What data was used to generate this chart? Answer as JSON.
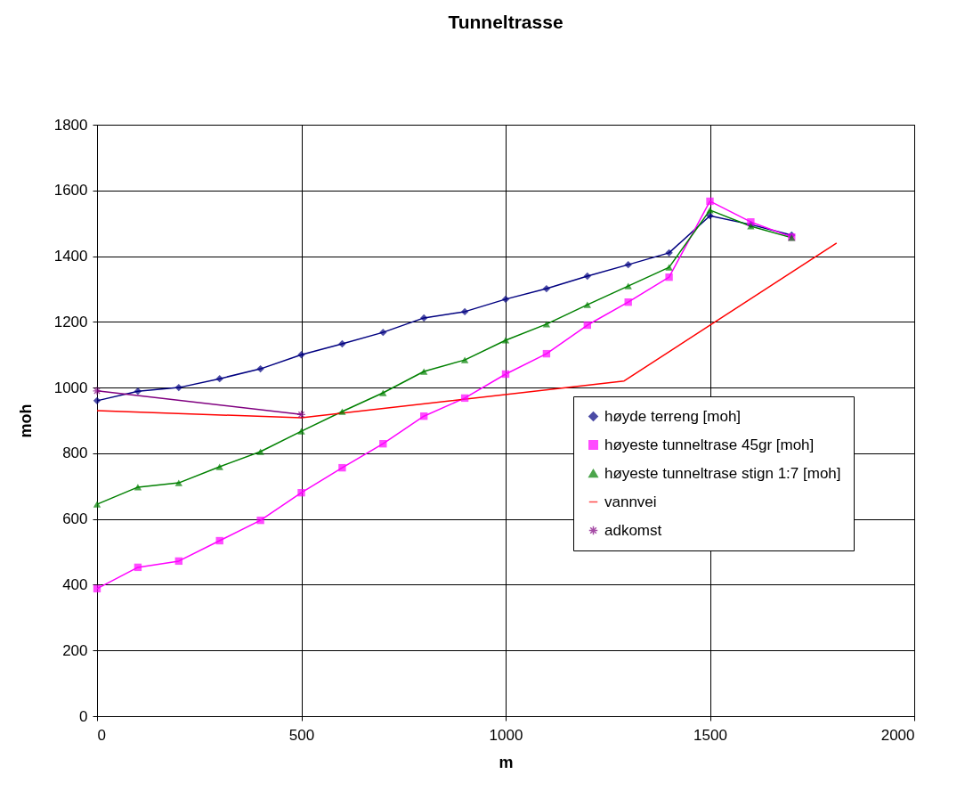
{
  "chart_data": {
    "type": "line",
    "title": "Tunneltrasse",
    "xlabel": "m",
    "ylabel": "moh",
    "xlim": [
      0,
      2000
    ],
    "xticks": [
      0,
      500,
      1000,
      1500,
      2000
    ],
    "ylim": [
      0,
      1800
    ],
    "yticks": [
      0,
      200,
      400,
      600,
      800,
      1000,
      1200,
      1400,
      1600,
      1800
    ],
    "grid": true,
    "legend": "right",
    "series": [
      {
        "name": "høyde terreng [moh]",
        "color": "#000080",
        "marker": "diamond",
        "x": [
          0,
          100,
          200,
          300,
          400,
          500,
          600,
          700,
          800,
          900,
          1000,
          1100,
          1200,
          1300,
          1400,
          1500,
          1600,
          1700
        ],
        "values": [
          960,
          989,
          1000,
          1027,
          1057,
          1100,
          1133,
          1168,
          1212,
          1231,
          1269,
          1301,
          1339,
          1374,
          1410,
          1523,
          1496,
          1464
        ]
      },
      {
        "name": "høyeste tunneltrase 45gr [moh]",
        "color": "#ff00ff",
        "marker": "square",
        "x": [
          0,
          100,
          200,
          300,
          400,
          500,
          600,
          700,
          800,
          900,
          1000,
          1100,
          1200,
          1300,
          1400,
          1500,
          1600,
          1700
        ],
        "values": [
          388,
          453,
          472,
          534,
          596,
          680,
          756,
          829,
          913,
          968,
          1041,
          1103,
          1190,
          1260,
          1336,
          1567,
          1504,
          1458
        ]
      },
      {
        "name": "høyeste tunneltrase stign 1:7 [moh]",
        "color": "#008000",
        "marker": "triangle",
        "x": [
          0,
          100,
          200,
          300,
          400,
          500,
          600,
          700,
          800,
          900,
          1000,
          1100,
          1200,
          1300,
          1400,
          1500,
          1600,
          1700
        ],
        "values": [
          645,
          697,
          710,
          759,
          805,
          867,
          927,
          984,
          1049,
          1084,
          1144,
          1193,
          1252,
          1309,
          1366,
          1540,
          1491,
          1456
        ]
      },
      {
        "name": "vannvei",
        "color": "#ff0000",
        "marker": "none",
        "x": [
          0,
          500,
          1290,
          1810
        ],
        "values": [
          930,
          908,
          1020,
          1440
        ]
      },
      {
        "name": "adkomst",
        "color": "#800080",
        "marker": "cross",
        "x": [
          0,
          500
        ],
        "values": [
          990,
          918
        ]
      }
    ]
  }
}
